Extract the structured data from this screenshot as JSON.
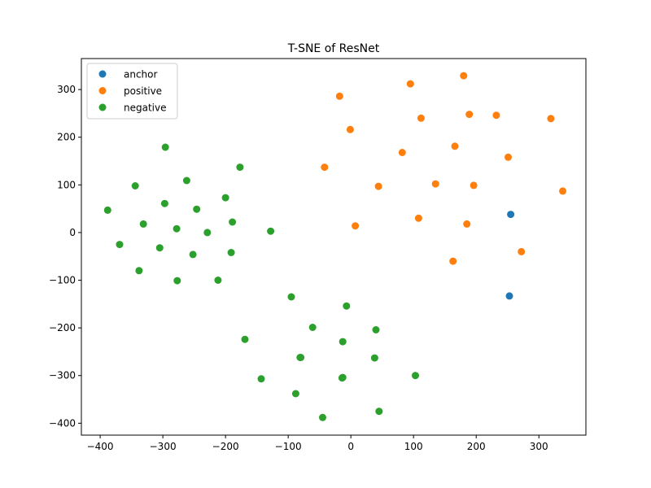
{
  "chart_data": {
    "type": "scatter",
    "title": "T-SNE of ResNet",
    "xlabel": "",
    "ylabel": "",
    "xlim": [
      -430,
      375
    ],
    "ylim": [
      -425,
      365
    ],
    "x_ticks": [
      -400,
      -300,
      -200,
      -100,
      0,
      100,
      200,
      300
    ],
    "y_ticks": [
      -400,
      -300,
      -200,
      -100,
      0,
      100,
      200,
      300
    ],
    "x_tick_labels": [
      "−400",
      "−300",
      "−200",
      "−100",
      "0",
      "100",
      "200",
      "300"
    ],
    "y_tick_labels": [
      "−400",
      "−300",
      "−200",
      "−100",
      "0",
      "100",
      "200",
      "300"
    ],
    "grid": false,
    "legend_position": "top-left",
    "series": [
      {
        "name": "anchor",
        "color": "#1f77b4",
        "points": [
          [
            255,
            38
          ],
          [
            253,
            -133
          ]
        ]
      },
      {
        "name": "positive",
        "color": "#ff7f0e",
        "points": [
          [
            -18,
            286
          ],
          [
            95,
            312
          ],
          [
            180,
            329
          ],
          [
            -1,
            216
          ],
          [
            112,
            240
          ],
          [
            189,
            248
          ],
          [
            232,
            246
          ],
          [
            319,
            239
          ],
          [
            82,
            168
          ],
          [
            166,
            181
          ],
          [
            251,
            158
          ],
          [
            -42,
            137
          ],
          [
            44,
            97
          ],
          [
            135,
            102
          ],
          [
            196,
            99
          ],
          [
            338,
            87
          ],
          [
            7,
            14
          ],
          [
            108,
            30
          ],
          [
            185,
            18
          ],
          [
            163,
            -60
          ],
          [
            272,
            -40
          ]
        ]
      },
      {
        "name": "negative",
        "color": "#2ca02c",
        "points": [
          [
            -296,
            179
          ],
          [
            -177,
            137
          ],
          [
            -262,
            109
          ],
          [
            -344,
            98
          ],
          [
            -200,
            73
          ],
          [
            -297,
            61
          ],
          [
            -246,
            49
          ],
          [
            -388,
            47
          ],
          [
            -189,
            22
          ],
          [
            -331,
            18
          ],
          [
            -278,
            8
          ],
          [
            -229,
            0
          ],
          [
            -128,
            3
          ],
          [
            -369,
            -25
          ],
          [
            -305,
            -32
          ],
          [
            -252,
            -46
          ],
          [
            -191,
            -42
          ],
          [
            -338,
            -80
          ],
          [
            -277,
            -101
          ],
          [
            -212,
            -100
          ],
          [
            -95,
            -135
          ],
          [
            -7,
            -154
          ],
          [
            -61,
            -199
          ],
          [
            40,
            -204
          ],
          [
            -169,
            -224
          ],
          [
            -13,
            -229
          ],
          [
            -80,
            -262
          ],
          [
            -81,
            -262
          ],
          [
            38,
            -263
          ],
          [
            -143,
            -307
          ],
          [
            -13,
            -304
          ],
          [
            -14,
            -305
          ],
          [
            103,
            -300
          ],
          [
            -88,
            -338
          ],
          [
            45,
            -375
          ],
          [
            -45,
            -388
          ]
        ]
      }
    ]
  }
}
